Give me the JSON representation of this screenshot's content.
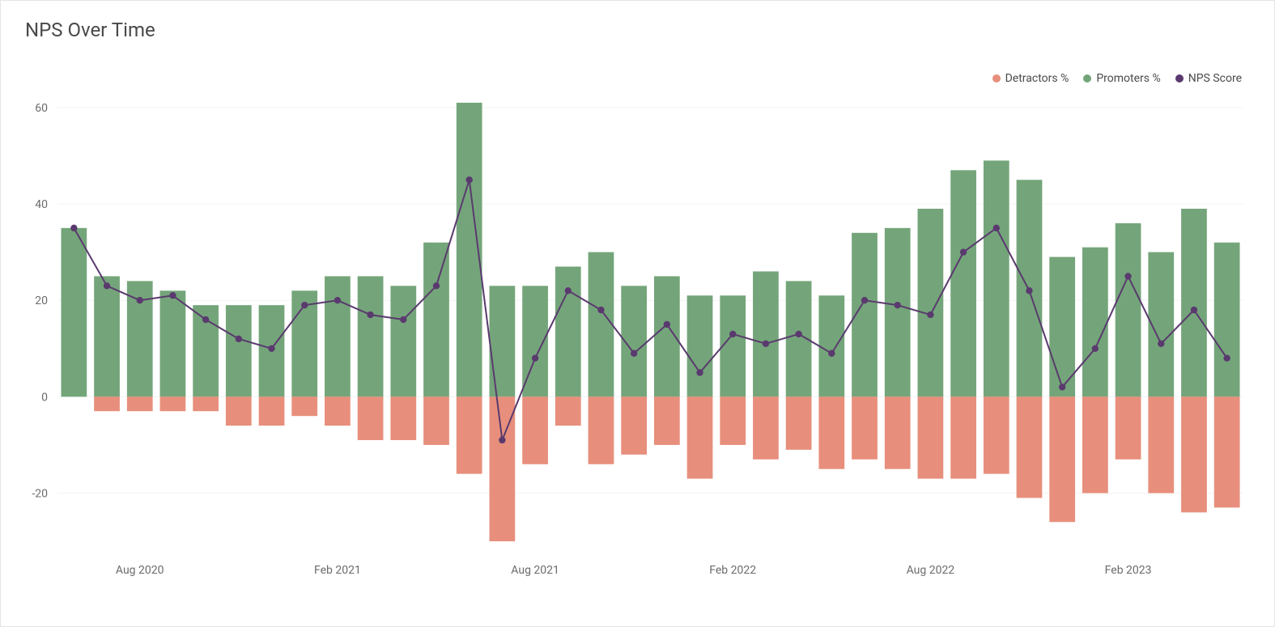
{
  "title": "NPS Over Time",
  "legend": [
    {
      "label": "Detractors %",
      "color": "#e78f7c"
    },
    {
      "label": "Promoters %",
      "color": "#74a57a"
    },
    {
      "label": "NPS Score",
      "color": "#5a3a6e"
    }
  ],
  "chart": {
    "type": "bar+line",
    "background_color": "#ffffff",
    "grid_color": "#f3f3f3",
    "ylim": [
      -32,
      62
    ],
    "yticks": [
      -20,
      0,
      20,
      40,
      60
    ],
    "yaxis_fontsize": 14,
    "xaxis_fontsize": 14,
    "title_fontsize": 24,
    "legend_fontsize": 14,
    "bar_gap_ratio": 0.22,
    "promoters_color": "#74a57a",
    "detractors_color": "#e78f7c",
    "line_color": "#5a3a6e",
    "line_width": 2,
    "marker_radius": 4.2,
    "x_tick_labels": [
      {
        "index": 2,
        "label": "Aug 2020"
      },
      {
        "index": 8,
        "label": "Feb 2021"
      },
      {
        "index": 14,
        "label": "Aug 2021"
      },
      {
        "index": 20,
        "label": "Feb 2022"
      },
      {
        "index": 26,
        "label": "Aug 2022"
      },
      {
        "index": 32,
        "label": "Feb 2023"
      }
    ],
    "data": [
      {
        "promoters": 35,
        "detractors": 0,
        "nps": 35
      },
      {
        "promoters": 25,
        "detractors": -3,
        "nps": 23
      },
      {
        "promoters": 24,
        "detractors": -3,
        "nps": 20
      },
      {
        "promoters": 22,
        "detractors": -3,
        "nps": 21
      },
      {
        "promoters": 19,
        "detractors": -3,
        "nps": 16
      },
      {
        "promoters": 19,
        "detractors": -6,
        "nps": 12
      },
      {
        "promoters": 19,
        "detractors": -6,
        "nps": 10
      },
      {
        "promoters": 22,
        "detractors": -4,
        "nps": 19
      },
      {
        "promoters": 25,
        "detractors": -6,
        "nps": 20
      },
      {
        "promoters": 25,
        "detractors": -9,
        "nps": 17
      },
      {
        "promoters": 23,
        "detractors": -9,
        "nps": 16
      },
      {
        "promoters": 32,
        "detractors": -10,
        "nps": 23
      },
      {
        "promoters": 61,
        "detractors": -16,
        "nps": 45
      },
      {
        "promoters": 23,
        "detractors": -30,
        "nps": -9
      },
      {
        "promoters": 23,
        "detractors": -14,
        "nps": 8
      },
      {
        "promoters": 27,
        "detractors": -6,
        "nps": 22
      },
      {
        "promoters": 30,
        "detractors": -14,
        "nps": 18
      },
      {
        "promoters": 23,
        "detractors": -12,
        "nps": 9
      },
      {
        "promoters": 25,
        "detractors": -10,
        "nps": 15
      },
      {
        "promoters": 21,
        "detractors": -17,
        "nps": 5
      },
      {
        "promoters": 21,
        "detractors": -10,
        "nps": 13
      },
      {
        "promoters": 26,
        "detractors": -13,
        "nps": 11
      },
      {
        "promoters": 24,
        "detractors": -11,
        "nps": 13
      },
      {
        "promoters": 21,
        "detractors": -15,
        "nps": 9
      },
      {
        "promoters": 34,
        "detractors": -13,
        "nps": 20
      },
      {
        "promoters": 35,
        "detractors": -15,
        "nps": 19
      },
      {
        "promoters": 39,
        "detractors": -17,
        "nps": 17
      },
      {
        "promoters": 47,
        "detractors": -17,
        "nps": 30
      },
      {
        "promoters": 49,
        "detractors": -16,
        "nps": 35
      },
      {
        "promoters": 45,
        "detractors": -21,
        "nps": 22
      },
      {
        "promoters": 29,
        "detractors": -26,
        "nps": 2
      },
      {
        "promoters": 31,
        "detractors": -20,
        "nps": 10
      },
      {
        "promoters": 36,
        "detractors": -13,
        "nps": 25
      },
      {
        "promoters": 30,
        "detractors": -20,
        "nps": 11
      },
      {
        "promoters": 39,
        "detractors": -24,
        "nps": 18
      },
      {
        "promoters": 32,
        "detractors": -23,
        "nps": 8
      }
    ]
  }
}
